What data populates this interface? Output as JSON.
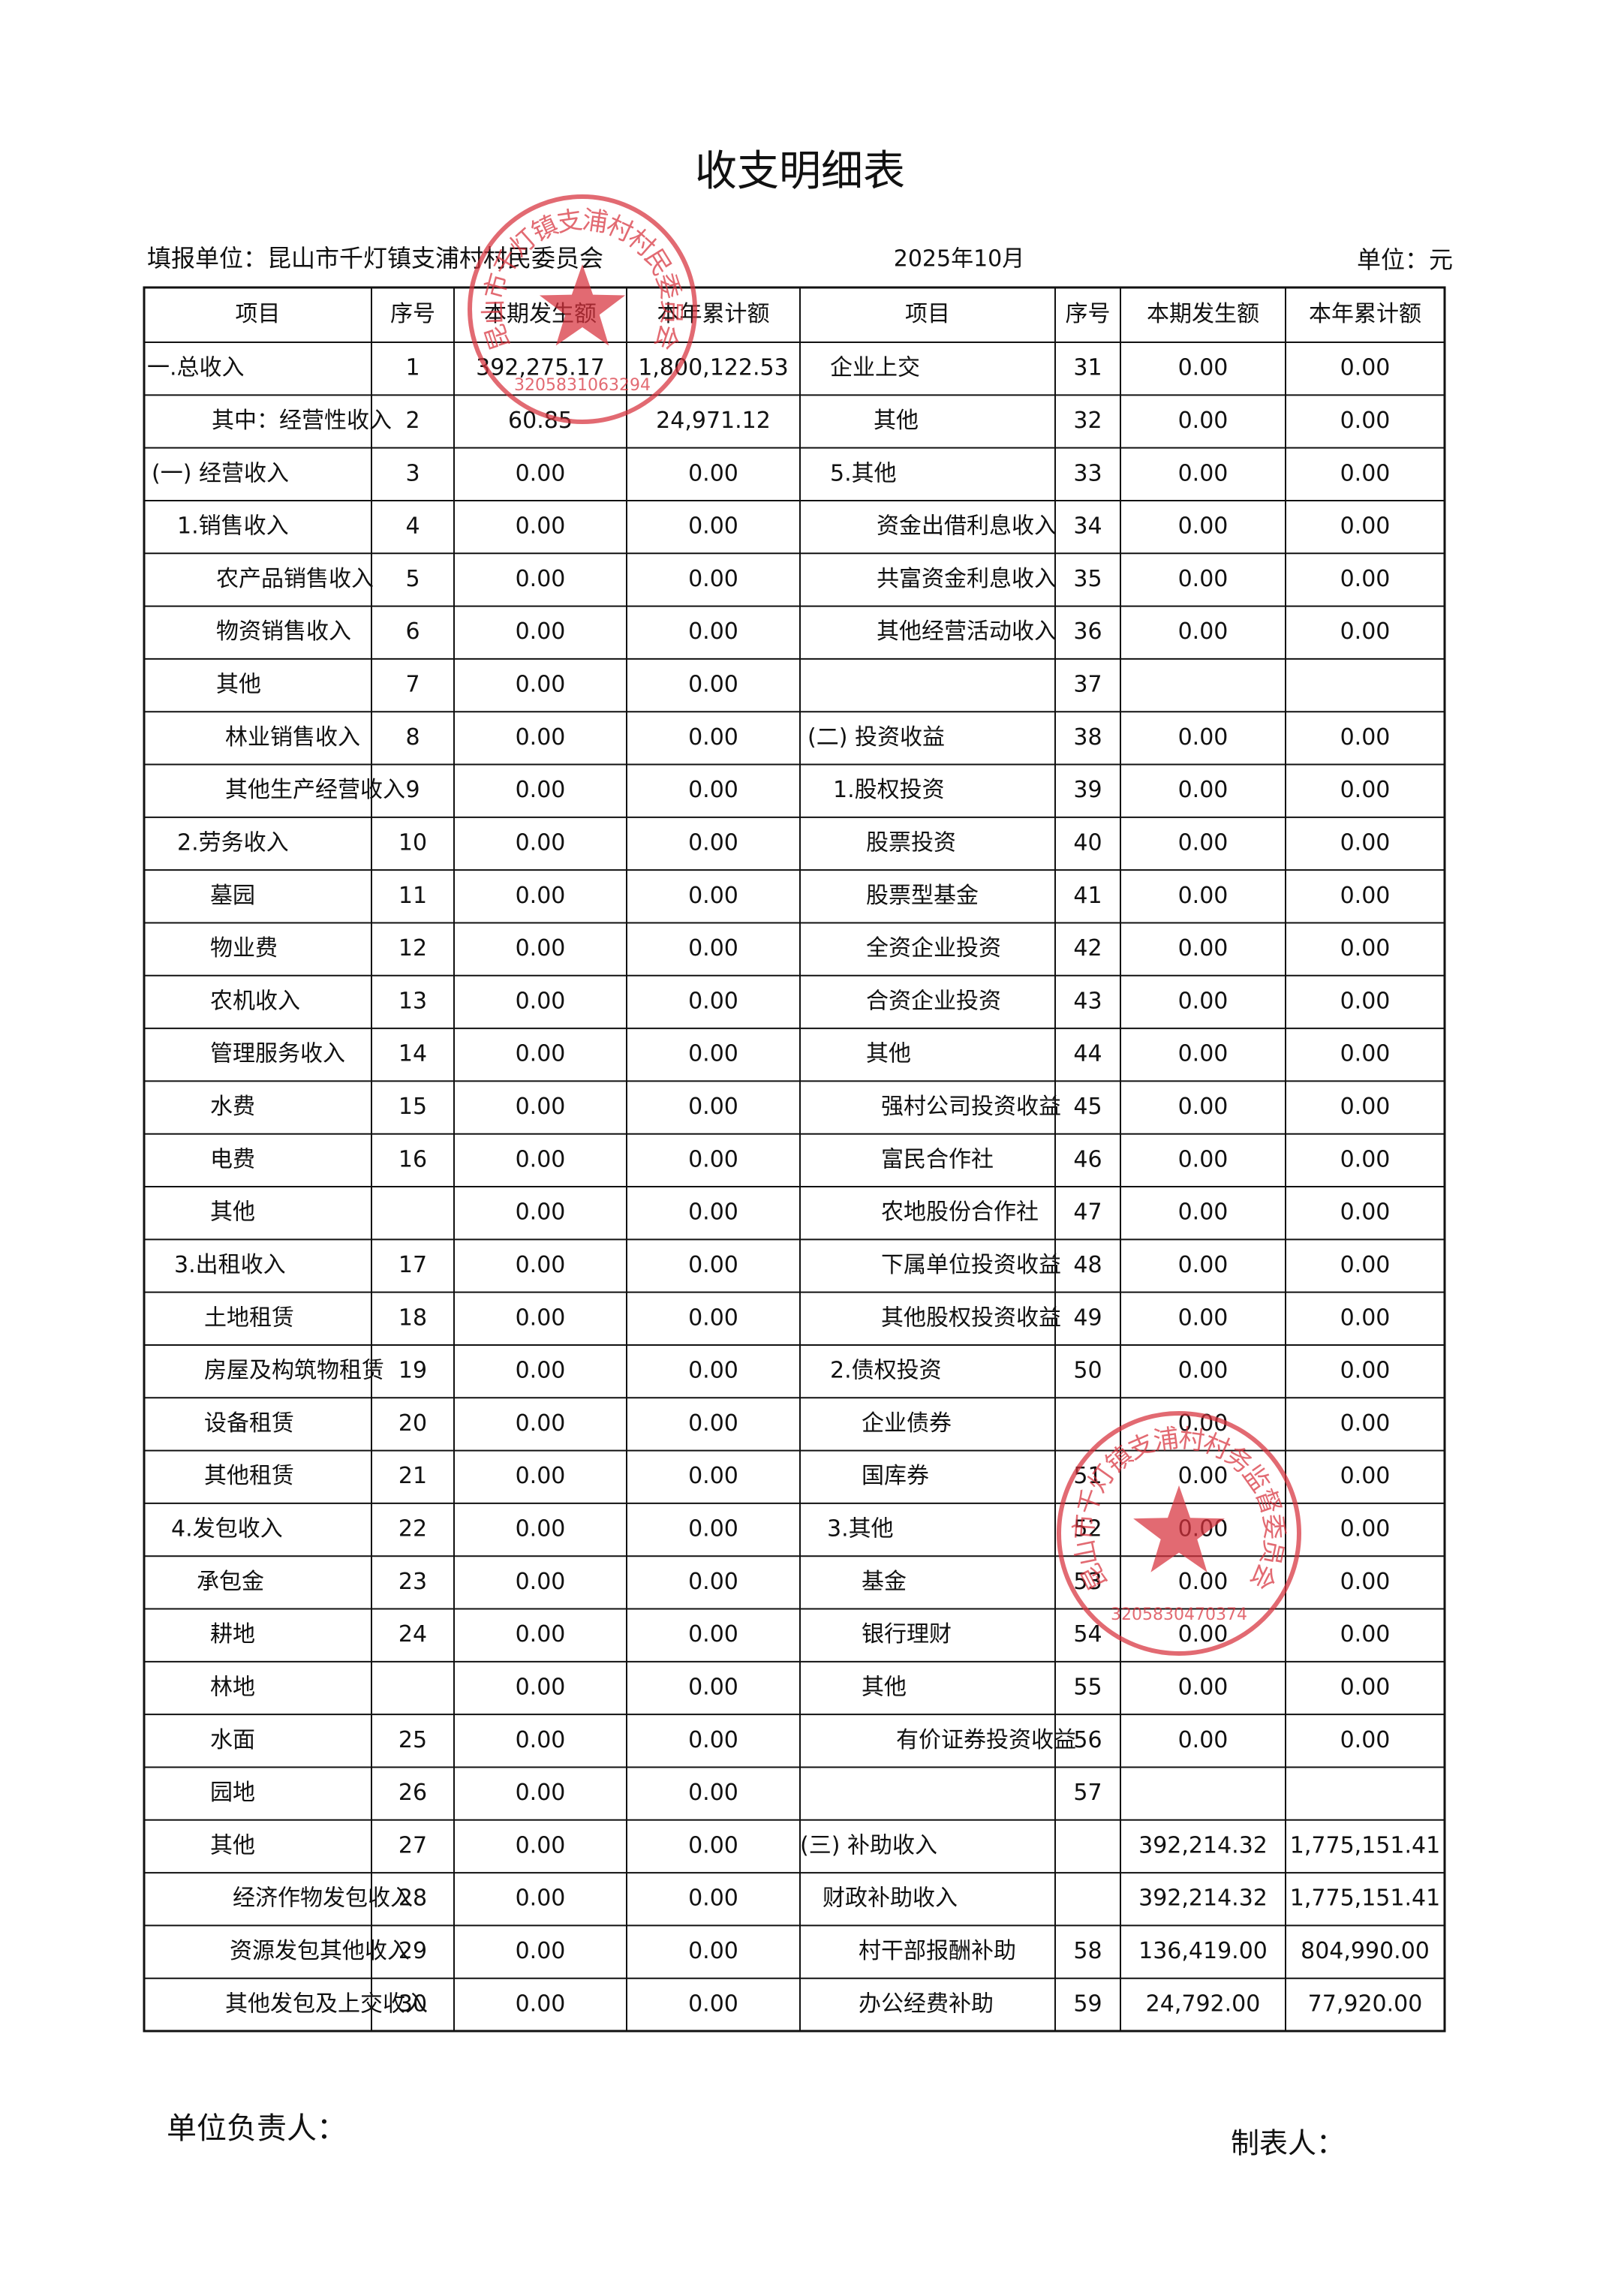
{
  "header": {
    "title": "收支明细表",
    "unit": "填报单位：昆山市千灯镇支浦村村民委员会",
    "period": "2025年10月",
    "currency": "单位：元"
  },
  "table": {
    "columns": [
      "项目",
      "序号",
      "本期发生额",
      "本年累计额",
      "项目",
      "序号",
      "本期发生额",
      "本年累计额"
    ],
    "rows": [
      [
        "一.总收入",
        "1",
        "392,275.17",
        "1,800,122.53",
        "企业上交",
        "31",
        "0.00",
        "0.00"
      ],
      [
        "其中：经营性收入",
        "2",
        "60.85",
        "24,971.12",
        "其他",
        "32",
        "0.00",
        "0.00"
      ],
      [
        "(一) 经营收入",
        "3",
        "0.00",
        "0.00",
        "5.其他",
        "33",
        "0.00",
        "0.00"
      ],
      [
        "1.销售收入",
        "4",
        "0.00",
        "0.00",
        "资金出借利息收入",
        "34",
        "0.00",
        "0.00"
      ],
      [
        "农产品销售收入",
        "5",
        "0.00",
        "0.00",
        "共富资金利息收入",
        "35",
        "0.00",
        "0.00"
      ],
      [
        "物资销售收入",
        "6",
        "0.00",
        "0.00",
        "其他经营活动收入",
        "36",
        "0.00",
        "0.00"
      ],
      [
        "其他",
        "7",
        "0.00",
        "0.00",
        null,
        "37",
        null,
        null
      ],
      [
        "林业销售收入",
        "8",
        "0.00",
        "0.00",
        "(二) 投资收益",
        "38",
        "0.00",
        "0.00"
      ],
      [
        "其他生产经营收入",
        "9",
        "0.00",
        "0.00",
        "1.股权投资",
        "39",
        "0.00",
        "0.00"
      ],
      [
        "2.劳务收入",
        "10",
        "0.00",
        "0.00",
        "股票投资",
        "40",
        "0.00",
        "0.00"
      ],
      [
        "墓园",
        "11",
        "0.00",
        "0.00",
        "股票型基金",
        "41",
        "0.00",
        "0.00"
      ],
      [
        "物业费",
        "12",
        "0.00",
        "0.00",
        "全资企业投资",
        "42",
        "0.00",
        "0.00"
      ],
      [
        "农机收入",
        "13",
        "0.00",
        "0.00",
        "合资企业投资",
        "43",
        "0.00",
        "0.00"
      ],
      [
        "管理服务收入",
        "14",
        "0.00",
        "0.00",
        "其他",
        "44",
        "0.00",
        "0.00"
      ],
      [
        "水费",
        "15",
        "0.00",
        "0.00",
        "强村公司投资收益",
        "45",
        "0.00",
        "0.00"
      ],
      [
        "电费",
        "16",
        "0.00",
        "0.00",
        "富民合作社",
        "46",
        "0.00",
        "0.00"
      ],
      [
        "其他",
        null,
        "0.00",
        "0.00",
        "农地股份合作社",
        "47",
        "0.00",
        "0.00"
      ],
      [
        "3.出租收入",
        "17",
        "0.00",
        "0.00",
        "下属单位投资收益",
        "48",
        "0.00",
        "0.00"
      ],
      [
        "土地租赁",
        "18",
        "0.00",
        "0.00",
        "其他股权投资收益",
        "49",
        "0.00",
        "0.00"
      ],
      [
        "房屋及构筑物租赁",
        "19",
        "0.00",
        "0.00",
        "2.债权投资",
        "50",
        "0.00",
        "0.00"
      ],
      [
        "设备租赁",
        "20",
        "0.00",
        "0.00",
        "企业债券",
        null,
        "0.00",
        "0.00"
      ],
      [
        "其他租赁",
        "21",
        "0.00",
        "0.00",
        "国库券",
        "51",
        "0.00",
        "0.00"
      ],
      [
        "4.发包收入",
        "22",
        "0.00",
        "0.00",
        "3.其他",
        "52",
        "0.00",
        "0.00"
      ],
      [
        "承包金",
        "23",
        "0.00",
        "0.00",
        "基金",
        "53",
        "0.00",
        "0.00"
      ],
      [
        "耕地",
        "24",
        "0.00",
        "0.00",
        "银行理财",
        "54",
        "0.00",
        "0.00"
      ],
      [
        "林地",
        null,
        "0.00",
        "0.00",
        "其他",
        "55",
        "0.00",
        "0.00"
      ],
      [
        "水面",
        "25",
        "0.00",
        "0.00",
        "有价证券投资收益",
        "56",
        "0.00",
        "0.00"
      ],
      [
        "园地",
        "26",
        "0.00",
        "0.00",
        null,
        "57",
        null,
        null
      ],
      [
        "其他",
        "27",
        "0.00",
        "0.00",
        "(三) 补助收入",
        null,
        "392,214.32",
        "1,775,151.41"
      ],
      [
        "经济作物发包收入",
        "28",
        "0.00",
        "0.00",
        "财政补助收入",
        null,
        "392,214.32",
        "1,775,151.41"
      ],
      [
        "资源发包其他收入",
        "29",
        "0.00",
        "0.00",
        "村干部报酬补助",
        "58",
        "136,419.00",
        "804,990.00"
      ],
      [
        "其他发包及上交收入",
        "30",
        "0.00",
        "0.00",
        "办公经费补助",
        "59",
        "24,792.00",
        "77,920.00"
      ]
    ]
  },
  "footer": {
    "leader": "单位负责人：",
    "preparer": "制表人："
  },
  "stamps": [
    {
      "name": "昆山市千灯镇支浦村村民委员会",
      "code": "3205831063294"
    },
    {
      "name": "昆山市千灯镇支浦村村务监督委员会",
      "code": "3205830470374"
    }
  ]
}
